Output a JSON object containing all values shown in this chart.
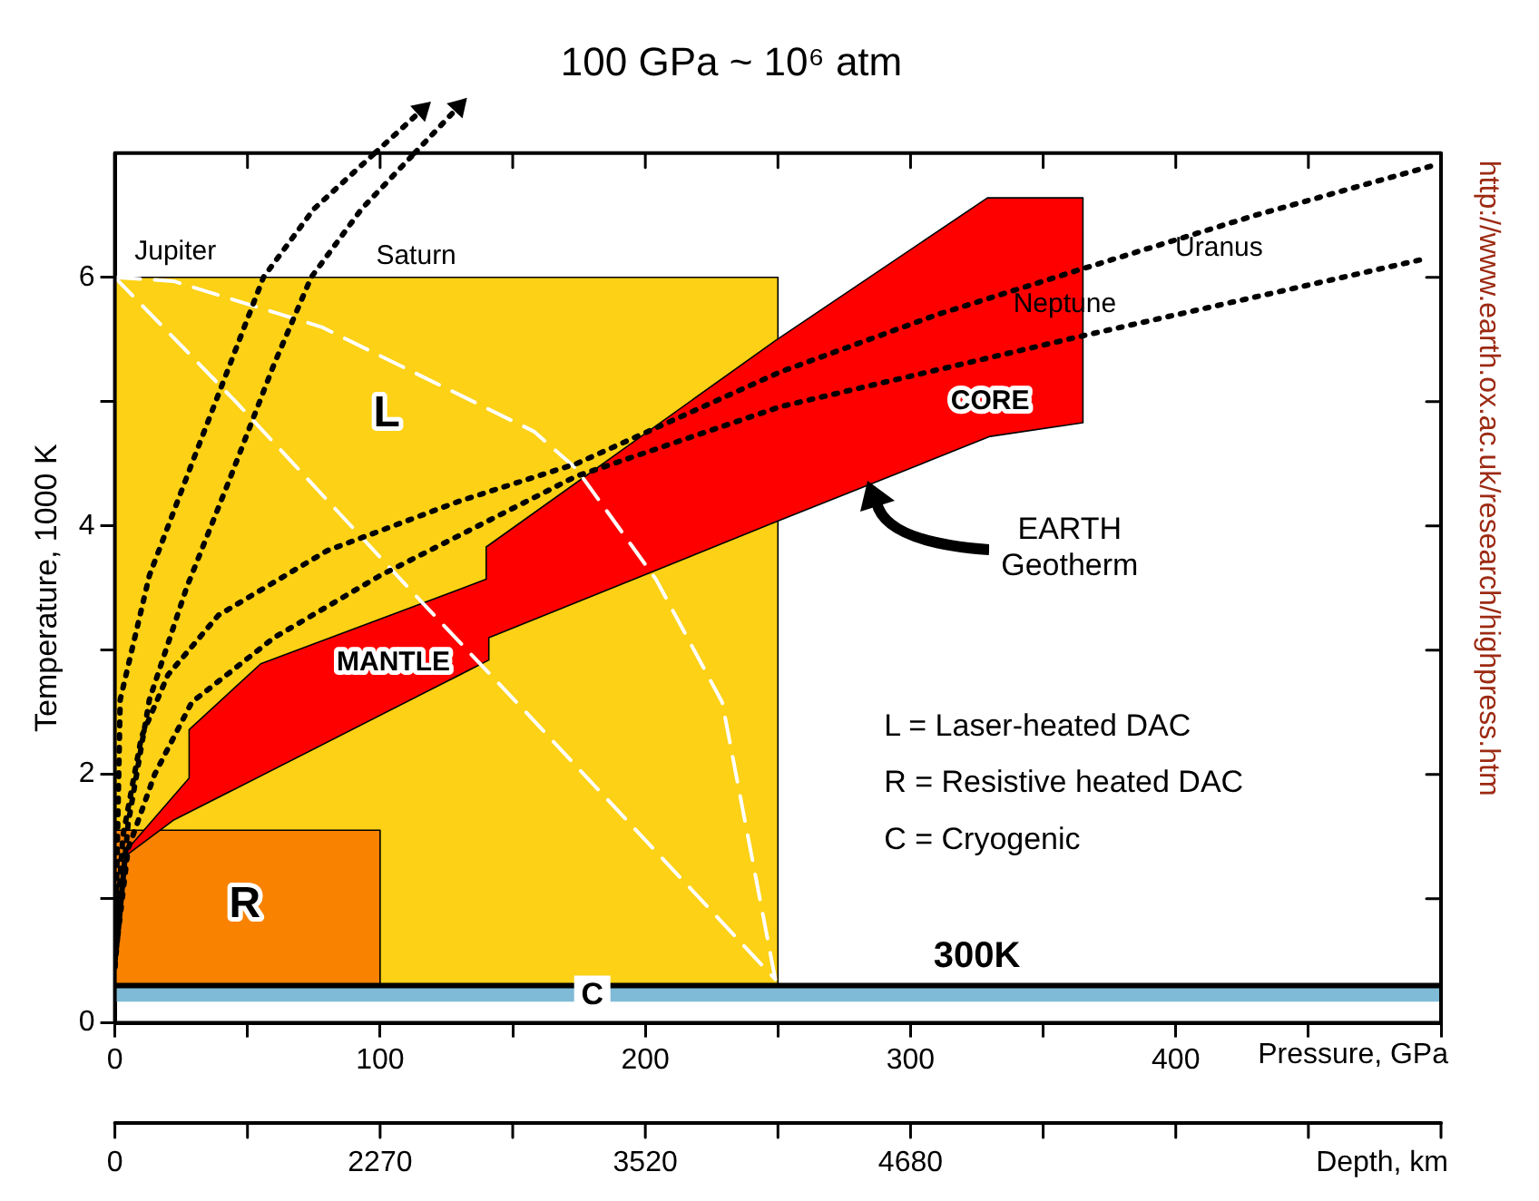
{
  "chart_data": {
    "type": "line",
    "title": "100 GPa ~ 10⁶ atm",
    "xlabel": "Pressure, GPa",
    "ylabel": "Temperature, 1000 K",
    "xlim": [
      0,
      500
    ],
    "ylim": [
      0,
      7
    ],
    "xticks": [
      0,
      {
        "value": 50,
        "label": null
      },
      100,
      {
        "value": 150,
        "label": null
      },
      200,
      {
        "value": 250,
        "label": null
      },
      300,
      {
        "value": 350,
        "label": null
      },
      400,
      {
        "value": 450,
        "label": null
      },
      {
        "value": 500,
        "label": null
      }
    ],
    "yticks": [
      0,
      {
        "value": 1,
        "label": null
      },
      2,
      {
        "value": 3,
        "label": null
      },
      4,
      {
        "value": 5,
        "label": null
      },
      6
    ],
    "grid": false,
    "legend": false,
    "marker": "none",
    "series": [
      {
        "type": "area",
        "color": "#fcd116",
        "x": [
          0,
          0,
          250,
          250,
          0
        ],
        "values": [
          0.3,
          6,
          6,
          0.3,
          0.3
        ]
      },
      {
        "type": "area",
        "color": "#f98200",
        "x": [
          0,
          0,
          100,
          100,
          0
        ],
        "values": [
          0.3,
          1.55,
          1.55,
          0.3,
          0.3
        ]
      },
      {
        "type": "area",
        "color": "#ff0000",
        "x": [
          0,
          28,
          28,
          55,
          140,
          140,
          249,
          329,
          365,
          365,
          330,
          249,
          141,
          141,
          22,
          0
        ],
        "values": [
          1.28,
          1.97,
          2.36,
          2.89,
          3.57,
          3.83,
          5.49,
          6.64,
          6.64,
          4.83,
          4.72,
          4.03,
          3.1,
          2.92,
          1.63,
          1.28
        ]
      },
      {
        "color": "#ffffff",
        "line_style": "dashed",
        "x": [
          0,
          46,
          116,
          155,
          249
        ],
        "values": [
          6,
          4.99,
          3.38,
          2.5,
          0.35
        ]
      },
      {
        "color": "#ffffff",
        "line_style": "dashed",
        "x": [
          0,
          22,
          78,
          158,
          174,
          204,
          229,
          249
        ],
        "values": [
          6,
          5.97,
          5.6,
          4.76,
          4.46,
          3.57,
          2.58,
          0.35
        ]
      },
      {
        "name": "Jupiter",
        "color": "#000000",
        "line_style": "dotted",
        "x": [
          0,
          1,
          2,
          13,
          29,
          47,
          56,
          75,
          98
        ],
        "values": [
          0.45,
          1.5,
          2.6,
          3.6,
          4.5,
          5.5,
          6,
          6.55,
          7
        ]
      },
      {
        "name": "Saturn",
        "color": "#000000",
        "line_style": "dotted",
        "x": [
          0,
          5,
          13,
          27,
          43,
          60,
          74,
          93,
          113
        ],
        "values": [
          0.45,
          1.6,
          2.6,
          3.5,
          4.36,
          5.3,
          6,
          6.55,
          7
        ]
      },
      {
        "name": "Uranus",
        "color": "#000000",
        "line_style": "dotted",
        "x": [
          0,
          3,
          10,
          20,
          39,
          80,
          130,
          174,
          251,
          310,
          365,
          430,
          497
        ],
        "values": [
          0.5,
          1.5,
          2.3,
          2.8,
          3.28,
          3.8,
          4.2,
          4.5,
          5.24,
          5.7,
          6.07,
          6.5,
          6.9
        ]
      },
      {
        "name": "Neptune",
        "color": "#000000",
        "line_style": "dotted",
        "x": [
          0,
          5,
          15,
          29,
          60,
          100,
          174,
          251,
          365,
          492
        ],
        "values": [
          0.5,
          1.4,
          2,
          2.58,
          3.1,
          3.6,
          4.4,
          4.96,
          5.53,
          6.14
        ]
      }
    ],
    "bands": [
      {
        "axis": "y",
        "from": 0.17,
        "to": 0.3,
        "label": "C",
        "color": "#7fbad6"
      }
    ],
    "ref_lines": [
      {
        "axis": "y",
        "value": 0.3,
        "label": "300K",
        "color": "#000000"
      }
    ],
    "annotations": [
      "L",
      "R",
      "MANTLE",
      "CORE",
      "L = Laser-heated DAC",
      "R = Resistive heated DAC",
      "C = Cryogenic",
      "http://www.earth.ox.ac.uk/research/highpress.htm",
      "Depth, km",
      "0",
      "2270",
      "3520",
      "4680",
      "EARTH Geotherm"
    ]
  }
}
